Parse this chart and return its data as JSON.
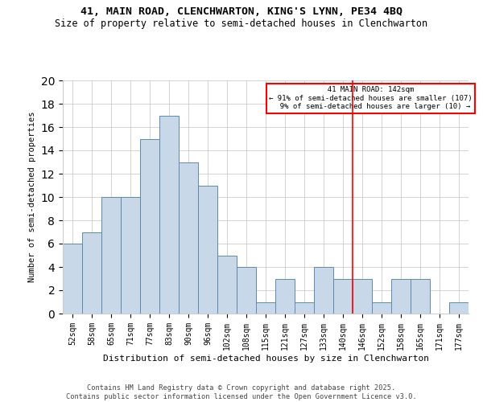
{
  "title_line1": "41, MAIN ROAD, CLENCHWARTON, KING'S LYNN, PE34 4BQ",
  "title_line2": "Size of property relative to semi-detached houses in Clenchwarton",
  "xlabel": "Distribution of semi-detached houses by size in Clenchwarton",
  "ylabel": "Number of semi-detached properties",
  "footer": "Contains HM Land Registry data © Crown copyright and database right 2025.\nContains public sector information licensed under the Open Government Licence v3.0.",
  "categories": [
    "52sqm",
    "58sqm",
    "65sqm",
    "71sqm",
    "77sqm",
    "83sqm",
    "90sqm",
    "96sqm",
    "102sqm",
    "108sqm",
    "115sqm",
    "121sqm",
    "127sqm",
    "133sqm",
    "140sqm",
    "146sqm",
    "152sqm",
    "158sqm",
    "165sqm",
    "171sqm",
    "177sqm"
  ],
  "values": [
    6,
    7,
    10,
    10,
    15,
    17,
    13,
    11,
    5,
    4,
    1,
    3,
    1,
    4,
    3,
    3,
    1,
    3,
    3,
    0,
    1
  ],
  "bar_color": "#c8d8e8",
  "bar_edge_color": "#5a8ab0",
  "vline_color": "red",
  "vline_x_index": 14,
  "ylim": [
    0,
    20
  ],
  "annotation_box_color": "white",
  "annotation_box_edge": "red",
  "pct_smaller": 91,
  "n_smaller": 107,
  "pct_larger": 9,
  "n_larger": 10
}
